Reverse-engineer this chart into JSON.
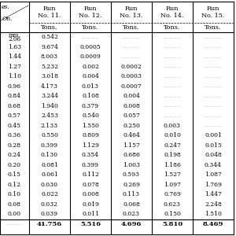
{
  "col_headers": [
    "Run\nNo. 11.",
    "Run\nNo. 12.",
    "Run\nNo. 13.",
    "Run\nNo. 14.",
    "Run\nNo. 15."
  ],
  "col_subheaders": [
    "Tons.",
    "Tons.",
    "Tons.",
    "Tons.",
    "Tons."
  ],
  "row_labels_col0": [
    "mm.",
    "2.06",
    "1.63",
    "1.44",
    "1.27",
    "1.10",
    "0.96",
    "0.84",
    "0.68",
    "0.57",
    "0.45",
    "0.36",
    "0.28",
    "0.24",
    "0.20",
    "0.15",
    "0.12",
    "0.10",
    "0.08",
    "0.00"
  ],
  "rows": [
    [
      "0.542",
      ".............",
      ".............",
      ".............",
      "............."
    ],
    [
      "9.674",
      "0.0005",
      ".............",
      ".............",
      "............."
    ],
    [
      "8.003",
      "0.0009",
      ".............",
      ".............",
      "............."
    ],
    [
      "5.232",
      "0.002",
      "0.0002",
      ".............",
      "............."
    ],
    [
      "3.018",
      "0.004",
      "0.0003",
      ".............",
      "............."
    ],
    [
      "4.173",
      "0.013",
      "0.0007",
      ".............",
      "............."
    ],
    [
      "3.244",
      "0.108",
      "0.004",
      ".............",
      "............."
    ],
    [
      "1.940",
      "0.379",
      "0.008",
      ".............",
      "............."
    ],
    [
      "2.453",
      "0.540",
      "0.057",
      ".............",
      "............."
    ],
    [
      "2.133",
      "1.550",
      "0.250",
      "0.003",
      "............."
    ],
    [
      "0.550",
      "0.809",
      "0.464",
      "0.010",
      "0.001"
    ],
    [
      "0.399",
      "1.129",
      "1.157",
      "0.247",
      "0.015"
    ],
    [
      "0.130",
      "0.354",
      "0.686",
      "0.198",
      "0.048"
    ],
    [
      "0.081",
      "0.399",
      "1.003",
      "1.186",
      "0.344"
    ],
    [
      "0.061",
      "0.112",
      "0.593",
      "1.527",
      "1.087"
    ],
    [
      "0.030",
      "0.078",
      "0.269",
      "1.097",
      "1.769"
    ],
    [
      "0.022",
      "0.008",
      "0.113",
      "0.769",
      "1.447"
    ],
    [
      "0.032",
      "0.019",
      "0.068",
      "0.623",
      "2.248"
    ],
    [
      "0.039",
      "0.011",
      "0.023",
      "0.150",
      "1.510"
    ]
  ],
  "totals": [
    "41.756",
    "5.516",
    "4.696",
    "5.810",
    "8.469"
  ],
  "background": "#ffffff",
  "line_color": "#000000",
  "text_color": "#000000",
  "dot_color": "#999999"
}
